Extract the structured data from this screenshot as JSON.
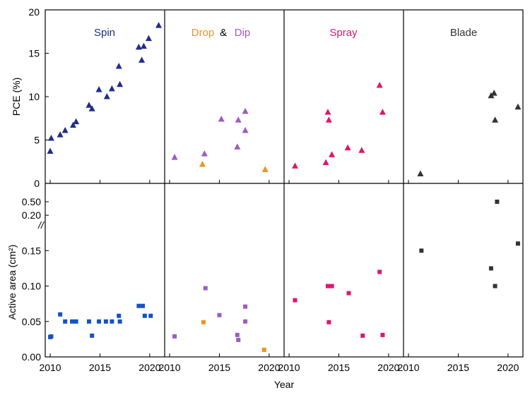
{
  "colors": {
    "spin": "#1f2d8c",
    "drop": "#f0931c",
    "dip": "#9f5bc2",
    "spray": "#e0166f",
    "blade": "#333333",
    "spin_area": "#1452c8",
    "dip_area": "#9f5bc2",
    "spray_area": "#e0166f",
    "blade_area": "#333333",
    "axis": "#000000"
  },
  "labels": {
    "panel_spin": "Spin",
    "panel_drop": "Drop",
    "panel_and": "&",
    "panel_dip": "Dip",
    "panel_spray": "Spray",
    "panel_blade": "Blade",
    "xlabel": "Year",
    "ylabel_top": "PCE (%)",
    "ylabel_bottom": "Active area (cm²)",
    "break_mark": "//"
  },
  "chart_data": {
    "type": "scatter",
    "x_axis": {
      "range": [
        2009.5,
        2021.5
      ],
      "ticks": [
        2010,
        2015,
        2020
      ]
    },
    "pce_axis": {
      "range": [
        0,
        20
      ],
      "ticks": [
        0,
        5,
        10,
        15,
        20
      ]
    },
    "area_axis": {
      "range": [
        0,
        0.23
      ],
      "ticks": [
        0.0,
        0.05,
        0.1,
        0.15,
        0.2
      ],
      "tick_labels": [
        "0.00",
        "0.05",
        "0.10",
        "0.15",
        "0.20"
      ]
    },
    "area_break_axis": {
      "value": 0.5,
      "tick_label": "0.50"
    },
    "panels": [
      {
        "method": "Spin",
        "pce_series": [
          {
            "name": "Spin",
            "marker": "triangle",
            "color_key": "spin",
            "points": [
              [
                2010.0,
                3.7
              ],
              [
                2010.1,
                5.2
              ],
              [
                2011.0,
                5.6
              ],
              [
                2011.5,
                6.1
              ],
              [
                2012.3,
                6.7
              ],
              [
                2012.6,
                7.1
              ],
              [
                2013.9,
                9.0
              ],
              [
                2014.2,
                8.6
              ],
              [
                2014.9,
                10.8
              ],
              [
                2015.7,
                10.0
              ],
              [
                2016.2,
                10.9
              ],
              [
                2016.9,
                13.5
              ],
              [
                2017.0,
                11.4
              ],
              [
                2018.9,
                15.7
              ],
              [
                2019.2,
                14.2
              ],
              [
                2019.4,
                15.8
              ],
              [
                2019.9,
                16.7
              ],
              [
                2020.9,
                18.2
              ]
            ]
          }
        ],
        "area_series": [
          {
            "name": "Spin",
            "marker": "square",
            "color_key": "spin_area",
            "points": [
              [
                2010.0,
                0.028
              ],
              [
                2010.1,
                0.029
              ],
              [
                2011.0,
                0.06
              ],
              [
                2011.5,
                0.05
              ],
              [
                2012.2,
                0.05
              ],
              [
                2012.6,
                0.05
              ],
              [
                2013.9,
                0.05
              ],
              [
                2014.2,
                0.03
              ],
              [
                2014.9,
                0.05
              ],
              [
                2015.6,
                0.05
              ],
              [
                2016.2,
                0.05
              ],
              [
                2016.9,
                0.058
              ],
              [
                2017.0,
                0.05
              ],
              [
                2018.9,
                0.072
              ],
              [
                2019.3,
                0.072
              ],
              [
                2019.5,
                0.058
              ],
              [
                2020.1,
                0.058
              ]
            ]
          }
        ]
      },
      {
        "method": "Drop & Dip",
        "pce_series": [
          {
            "name": "Drop",
            "marker": "triangle",
            "color_key": "drop",
            "points": [
              [
                2013.3,
                2.2
              ],
              [
                2019.6,
                1.6
              ]
            ]
          },
          {
            "name": "Dip",
            "marker": "triangle",
            "color_key": "dip",
            "points": [
              [
                2010.5,
                3.0
              ],
              [
                2013.5,
                3.4
              ],
              [
                2015.2,
                7.4
              ],
              [
                2016.8,
                4.2
              ],
              [
                2016.9,
                7.3
              ],
              [
                2017.6,
                8.3
              ],
              [
                2017.6,
                6.1
              ]
            ]
          }
        ],
        "area_series": [
          {
            "name": "Drop",
            "marker": "square",
            "color_key": "drop",
            "points": [
              [
                2013.4,
                0.049
              ],
              [
                2019.5,
                0.01
              ]
            ]
          },
          {
            "name": "Dip",
            "marker": "square",
            "color_key": "dip_area",
            "points": [
              [
                2010.5,
                0.029
              ],
              [
                2013.6,
                0.097
              ],
              [
                2015.0,
                0.059
              ],
              [
                2016.8,
                0.031
              ],
              [
                2016.9,
                0.024
              ],
              [
                2017.6,
                0.071
              ],
              [
                2017.6,
                0.05
              ]
            ]
          }
        ]
      },
      {
        "method": "Spray",
        "pce_series": [
          {
            "name": "Spray",
            "marker": "triangle",
            "color_key": "spray",
            "points": [
              [
                2010.6,
                2.0
              ],
              [
                2013.7,
                2.4
              ],
              [
                2013.9,
                8.2
              ],
              [
                2014.0,
                7.3
              ],
              [
                2014.3,
                3.3
              ],
              [
                2015.9,
                4.1
              ],
              [
                2017.3,
                3.8
              ],
              [
                2019.1,
                11.3
              ],
              [
                2019.4,
                8.2
              ]
            ]
          }
        ],
        "area_series": [
          {
            "name": "Spray",
            "marker": "square",
            "color_key": "spray_area",
            "points": [
              [
                2010.6,
                0.08
              ],
              [
                2013.9,
                0.1
              ],
              [
                2014.0,
                0.049
              ],
              [
                2014.3,
                0.1
              ],
              [
                2016.0,
                0.09
              ],
              [
                2017.4,
                0.03
              ],
              [
                2019.1,
                0.12
              ],
              [
                2019.4,
                0.031
              ]
            ]
          }
        ]
      },
      {
        "method": "Blade",
        "pce_series": [
          {
            "name": "Blade",
            "marker": "triangle",
            "color_key": "blade",
            "points": [
              [
                2011.2,
                1.1
              ],
              [
                2018.3,
                10.1
              ],
              [
                2018.6,
                10.4
              ],
              [
                2018.7,
                7.3
              ],
              [
                2021.0,
                8.8
              ]
            ]
          }
        ],
        "area_series": [
          {
            "name": "Blade",
            "marker": "square",
            "color_key": "blade_area",
            "points": [
              [
                2011.3,
                0.15
              ],
              [
                2018.3,
                0.125
              ],
              [
                2018.7,
                0.1
              ],
              [
                2021.0,
                0.16
              ]
            ]
          },
          {
            "name": "Blade",
            "marker": "square",
            "color_key": "blade_area",
            "break_axis": true,
            "points": [
              [
                2018.9,
                0.5
              ]
            ]
          }
        ]
      }
    ]
  }
}
